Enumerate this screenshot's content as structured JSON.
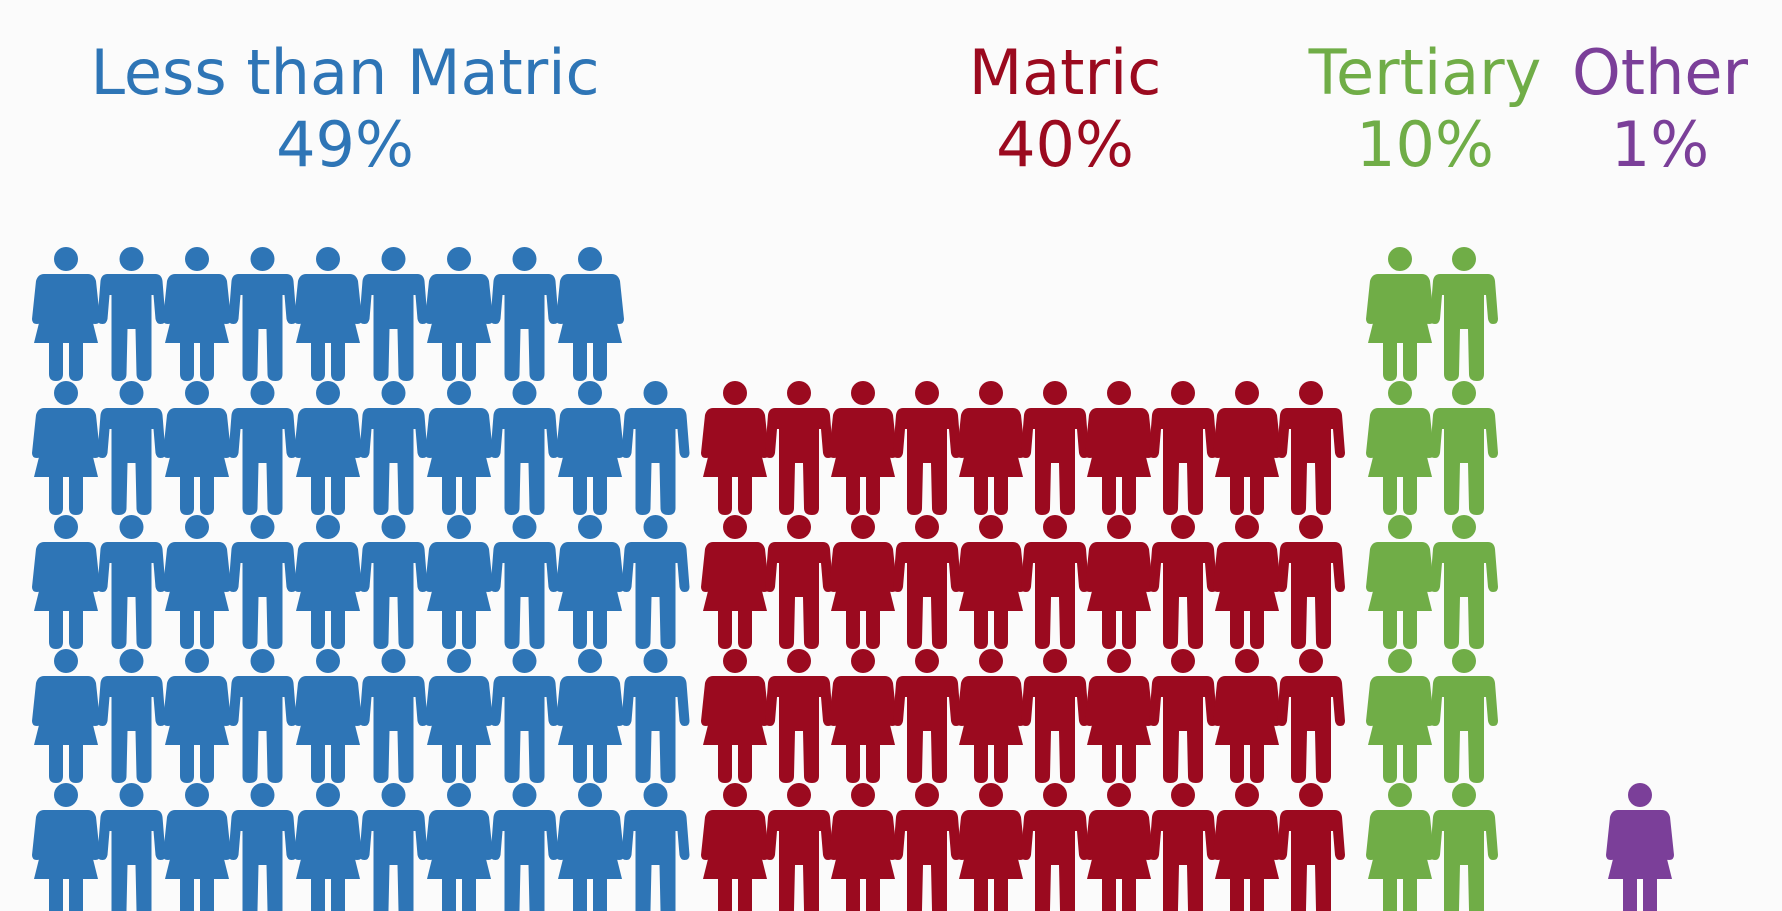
{
  "chart_data": {
    "type": "pictogram",
    "unit": "1 icon = 1%",
    "colors": [
      "#2e75b6",
      "#9b0a1f",
      "#70ad47",
      "#7b3f99"
    ],
    "series": [
      {
        "name": "Less than Matric",
        "percent_label": "49%",
        "value": 49,
        "color": "#2e75b6"
      },
      {
        "name": "Matric",
        "percent_label": "40%",
        "value": 40,
        "color": "#9b0a1f"
      },
      {
        "name": "Tertiary",
        "percent_label": "10%",
        "value": 10,
        "color": "#70ad47"
      },
      {
        "name": "Other",
        "percent_label": "1%",
        "value": 1,
        "color": "#7b3f99"
      }
    ]
  }
}
